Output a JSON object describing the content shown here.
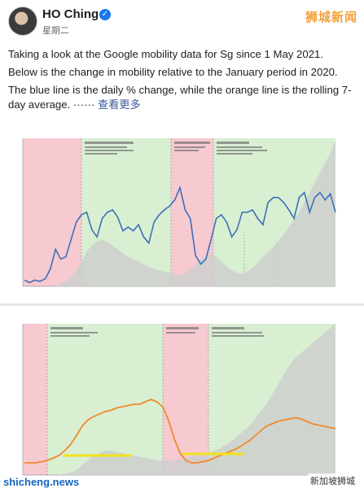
{
  "header": {
    "author": "HO Ching",
    "date": "星期二",
    "watermark": "狮城新闻"
  },
  "post": {
    "paragraphs": [
      "Taking a look at the Google mobility data for Sg since 1 May 2021.",
      "Below is the change in mobility relative to the January period in 2020.",
      "The blue line is the daily % change, while the orange line is the rolling 7-day average."
    ],
    "see_more": "查看更多"
  },
  "footer": {
    "watermark_left": "shicheng.news",
    "watermark_right": "新加坡狮城"
  },
  "colors": {
    "pink": "#f7c9d1",
    "green": "#d8efd2",
    "blue_line": "#3f6fb8",
    "orange_line": "#f08a2a",
    "gray_area": "#cfcfcf",
    "annotation_yellow": "#f2e21b"
  },
  "chart_data": [
    {
      "type": "line",
      "series": [
        {
          "values": [
            5,
            3,
            5,
            4,
            6,
            14,
            30,
            22,
            24,
            38,
            52,
            58,
            60,
            46,
            40,
            55,
            60,
            62,
            56,
            45,
            48,
            45,
            50,
            40,
            35,
            52,
            58,
            62,
            65,
            70,
            80,
            62,
            55,
            25,
            18,
            22,
            38,
            55,
            58,
            52,
            40,
            46,
            60,
            60,
            62,
            55,
            50,
            68,
            72,
            72,
            68,
            62,
            55,
            72,
            76,
            60,
            72,
            76,
            70,
            75,
            60
          ]
        },
        {
          "values": [
            0,
            0,
            0,
            0,
            0,
            0,
            0,
            2,
            4,
            8,
            13,
            20,
            28,
            33,
            36,
            38,
            36,
            33,
            30,
            27,
            24,
            22,
            20,
            18,
            16,
            14,
            13,
            12,
            11,
            10,
            9,
            11,
            14,
            18,
            22,
            25,
            26,
            24,
            20,
            16,
            13,
            11,
            10,
            12,
            15,
            19,
            24,
            28,
            32,
            37,
            42,
            48,
            54,
            60,
            68,
            76,
            84,
            92,
            100,
            108,
            118
          ]
        }
      ]
    },
    {
      "type": "line",
      "series": [
        {
          "values": [
            10,
            10,
            10,
            11,
            12,
            14,
            16,
            20,
            25,
            32,
            40,
            45,
            48,
            50,
            52,
            53,
            55,
            56,
            57,
            58,
            58,
            60,
            62,
            60,
            56,
            45,
            30,
            18,
            12,
            10,
            10,
            11,
            12,
            14,
            16,
            18,
            20,
            22,
            25,
            28,
            32,
            36,
            40,
            42,
            44,
            45,
            46,
            47,
            46,
            44,
            42,
            41,
            40,
            39,
            38
          ]
        },
        {
          "values": [
            0,
            0,
            0,
            0,
            0,
            0,
            0,
            1,
            2,
            4,
            8,
            12,
            16,
            18,
            20,
            20,
            19,
            18,
            17,
            16,
            15,
            14,
            13,
            12,
            12,
            12,
            12,
            13,
            14,
            15,
            16,
            17,
            18,
            20,
            22,
            25,
            28,
            32,
            36,
            40,
            46,
            52,
            58,
            66,
            74,
            82,
            90,
            96,
            100,
            104,
            108,
            112,
            116,
            120,
            124
          ]
        }
      ]
    }
  ]
}
